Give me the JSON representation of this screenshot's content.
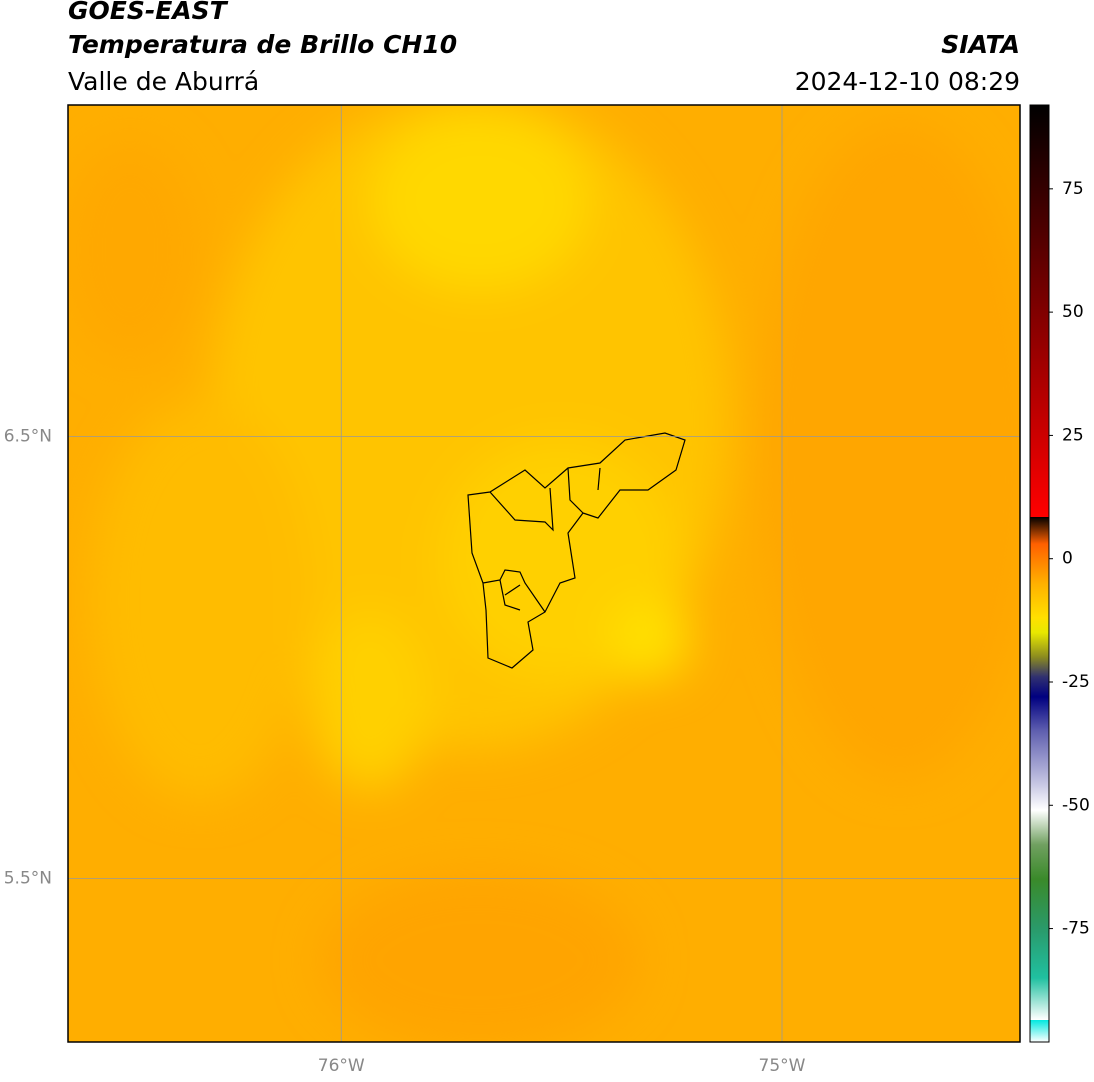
{
  "header": {
    "title": "GOES-EAST",
    "subtitle": "Temperatura de Brillo CH10",
    "source": "SIATA",
    "region": "Valle de Aburrá",
    "datetime": "2024-12-10 08:29"
  },
  "map": {
    "lonlim": [
      -76.62,
      -74.46
    ],
    "latlim": [
      5.13,
      7.25
    ],
    "lon_ticks": [
      {
        "value": -76,
        "label": "76°W"
      },
      {
        "value": -75,
        "label": "75°W"
      }
    ],
    "lat_ticks": [
      {
        "value": 6.5,
        "label": "6.5°N"
      },
      {
        "value": 5.5,
        "label": "5.5°N"
      }
    ],
    "grid": true,
    "grid_color": "#999999",
    "background": "#ffae00"
  },
  "colorbar": {
    "lim": [
      -98,
      92
    ],
    "ticks": [
      75,
      50,
      25,
      0,
      -25,
      -50,
      -75
    ],
    "stops": [
      {
        "value": -98,
        "color": "#ffffff"
      },
      {
        "value": -93.5,
        "color": "#ffffff"
      },
      {
        "value": -93.5,
        "color": "#00e8e0"
      },
      {
        "value": -85,
        "color": "#20c0a0"
      },
      {
        "value": -75,
        "color": "#2a9a6a"
      },
      {
        "value": -65,
        "color": "#3a8a2a"
      },
      {
        "value": -58,
        "color": "#70a060"
      },
      {
        "value": -51,
        "color": "#ffffff"
      },
      {
        "value": -45,
        "color": "#c0c0e0"
      },
      {
        "value": -35,
        "color": "#6060b0"
      },
      {
        "value": -28,
        "color": "#000080"
      },
      {
        "value": -24,
        "color": "#303070"
      },
      {
        "value": -20,
        "color": "#8a8a20"
      },
      {
        "value": -15,
        "color": "#e8e800"
      },
      {
        "value": -12,
        "color": "#ffe000"
      },
      {
        "value": -5,
        "color": "#ffb000"
      },
      {
        "value": 3,
        "color": "#ff6000"
      },
      {
        "value": 8.5,
        "color": "#ff0000"
      },
      {
        "value": 8.5,
        "color": "#000000"
      },
      {
        "value": 92,
        "color": "#000000"
      }
    ]
  }
}
